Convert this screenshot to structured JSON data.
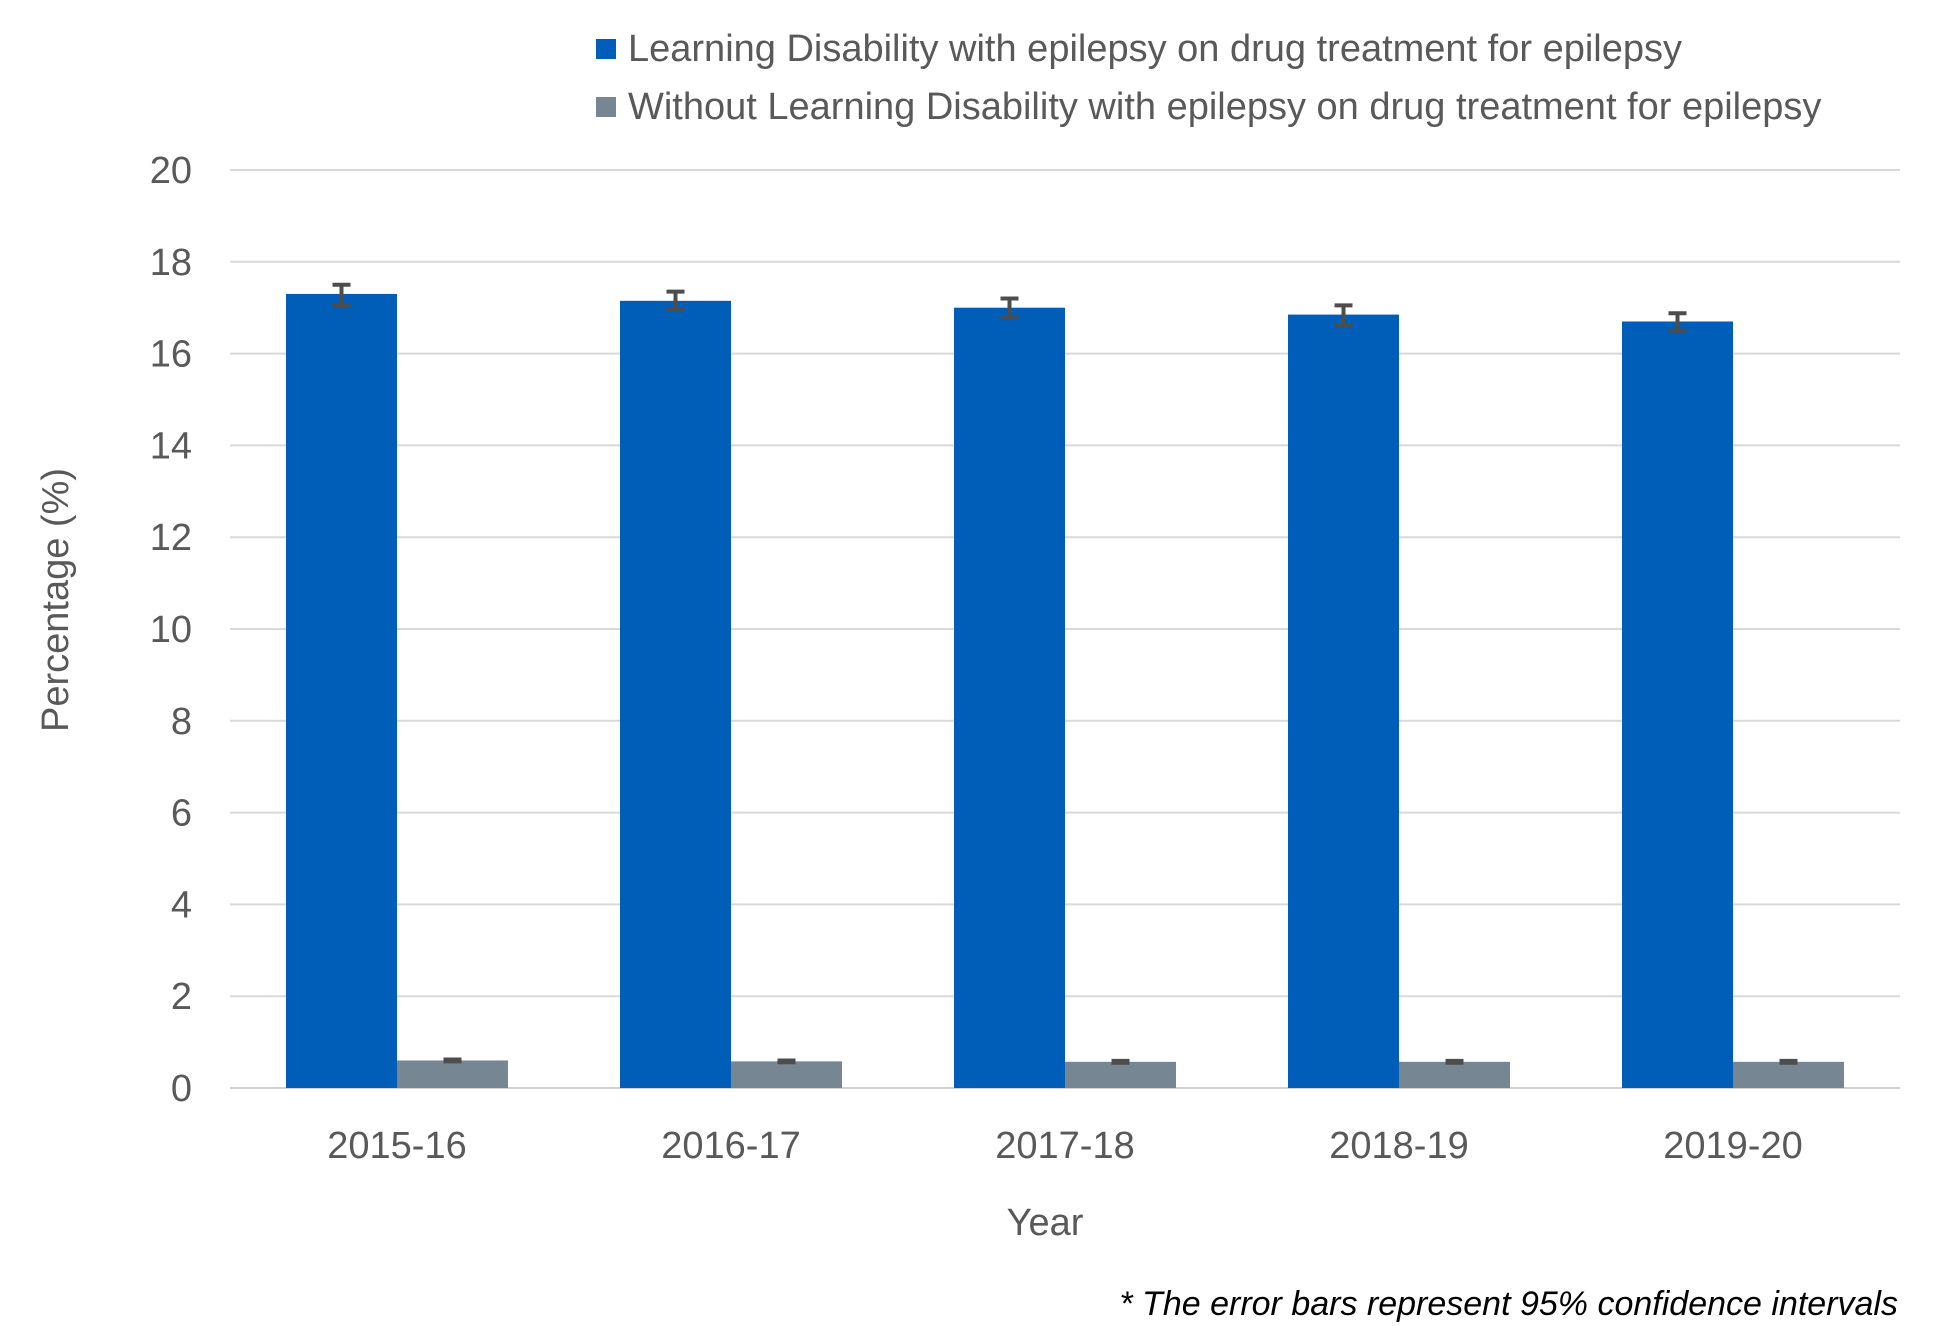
{
  "chart_data": {
    "type": "bar",
    "categories": [
      "2015-16",
      "2016-17",
      "2017-18",
      "2018-19",
      "2019-20"
    ],
    "series": [
      {
        "name": "Learning Disability with epilepsy on drug treatment for epilepsy",
        "color": "#005EB8",
        "values": [
          17.3,
          17.15,
          17.0,
          16.85,
          16.7
        ],
        "error_low": [
          17.05,
          16.95,
          16.8,
          16.6,
          16.5
        ],
        "error_high": [
          17.5,
          17.35,
          17.2,
          17.05,
          16.88
        ]
      },
      {
        "name": "Without Learning Disability with epilepsy on drug treatment for epilepsy",
        "color": "#768692",
        "values": [
          0.6,
          0.58,
          0.57,
          0.57,
          0.57
        ],
        "error_low": [
          0.58,
          0.56,
          0.55,
          0.55,
          0.55
        ],
        "error_high": [
          0.62,
          0.6,
          0.59,
          0.59,
          0.59
        ]
      }
    ],
    "yticks": [
      "0",
      "2",
      "4",
      "6",
      "8",
      "10",
      "12",
      "14",
      "16",
      "18",
      "20"
    ],
    "ylim": [
      0,
      20
    ],
    "xlabel": "Year",
    "ylabel": "Percentage (%)",
    "grid": true,
    "legend_position": "top"
  },
  "footnote": "* The error bars represent 95%  confidence intervals"
}
